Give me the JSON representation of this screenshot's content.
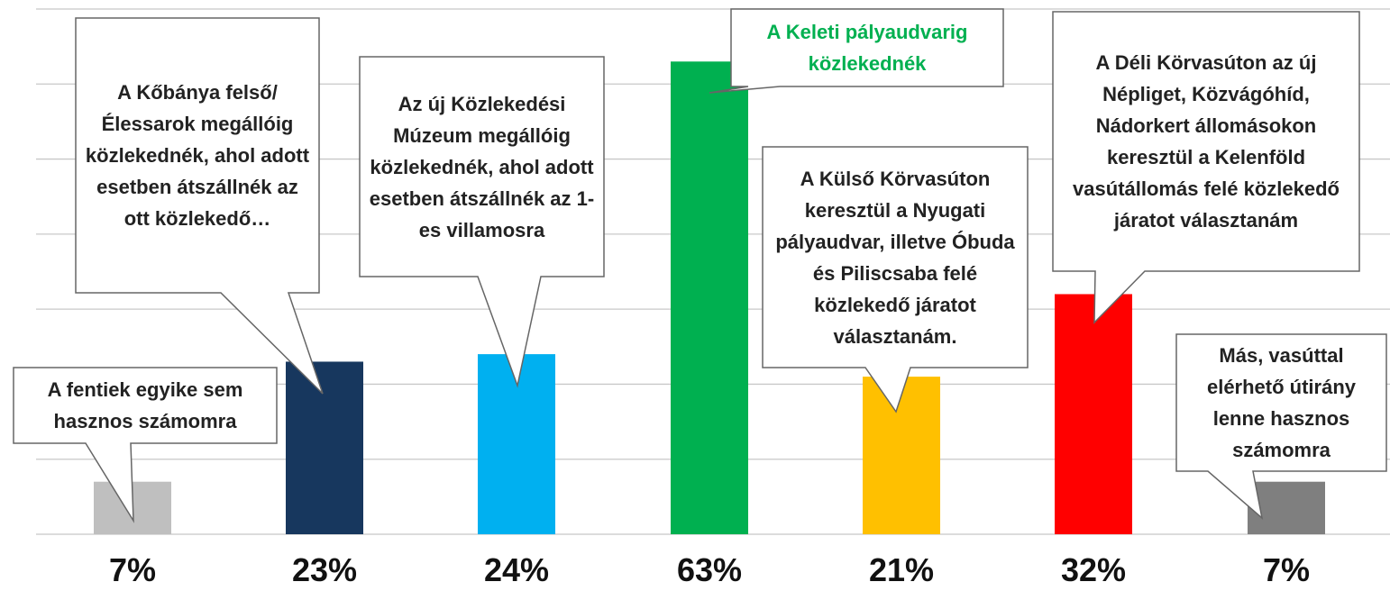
{
  "chart_data": {
    "type": "bar",
    "categories": [
      "A fentiek egyike sem hasznos számomra",
      "A Kőbánya felső/Élessarok megállóig közlekednék, ahol adott esetben átszállnék az ott közlekedő…",
      "Az új Közlekedési Múzeum megállóig közlekednék, ahol adott esetben átszállnék az 1-es villamosra",
      "A Keleti pályaudvarig közlekednék",
      "A Külső Körvasúton keresztül a Nyugati pályaudvar, illetve Óbuda és Piliscsaba felé közlekedő járatot választanám.",
      "A Déli Körvasúton az új Népliget, Közvágóhíd, Nádorkert állomásokon keresztül a Kelenföld vasútállomás felé közlekedő járatot választanám",
      "Más, vasúttal elérhető útirány lenne hasznos számomra"
    ],
    "values": [
      7,
      23,
      24,
      63,
      21,
      32,
      7
    ],
    "value_labels": [
      "7%",
      "23%",
      "24%",
      "63%",
      "21%",
      "32%",
      "7%"
    ],
    "colors": [
      "#bfbfbf",
      "#17375e",
      "#00b0f0",
      "#00b050",
      "#ffc000",
      "#ff0000",
      "#7f7f7f"
    ],
    "highlight_color": "#00b050",
    "highlight_index": 3,
    "ylim": [
      0,
      70
    ],
    "yticks": [
      0,
      10,
      20,
      30,
      40,
      50,
      60,
      70
    ],
    "grid": true
  }
}
